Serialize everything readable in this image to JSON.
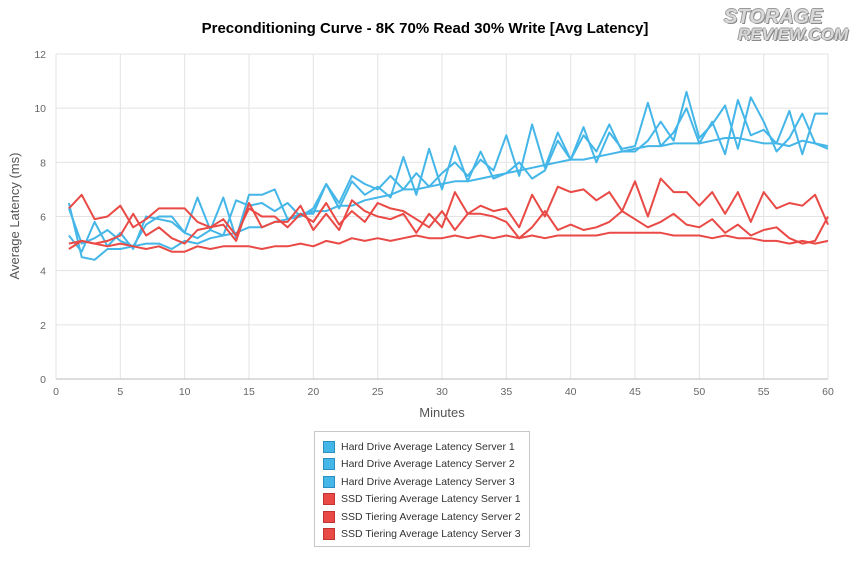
{
  "logo": {
    "line1": "STORAGE",
    "line2": "REVIEW.COM"
  },
  "chart_data": {
    "type": "line",
    "title": "Preconditioning Curve - 8K 70% Read 30% Write [Avg Latency]",
    "xlabel": "Minutes",
    "ylabel": "Average Latency (ms)",
    "xlim": [
      0,
      60
    ],
    "ylim": [
      0,
      12
    ],
    "xticks": [
      0,
      5,
      10,
      15,
      20,
      25,
      30,
      35,
      40,
      45,
      50,
      55,
      60
    ],
    "yticks": [
      0,
      2,
      4,
      6,
      8,
      10,
      12
    ],
    "grid": true,
    "legend_position": "bottom",
    "x": [
      1,
      2,
      3,
      4,
      5,
      6,
      7,
      8,
      9,
      10,
      11,
      12,
      13,
      14,
      15,
      16,
      17,
      18,
      19,
      20,
      21,
      22,
      23,
      24,
      25,
      26,
      27,
      28,
      29,
      30,
      31,
      32,
      33,
      34,
      35,
      36,
      37,
      38,
      39,
      40,
      41,
      42,
      43,
      44,
      45,
      46,
      47,
      48,
      49,
      50,
      51,
      52,
      53,
      54,
      55,
      56,
      57,
      58,
      59,
      60
    ],
    "series": [
      {
        "name": "Hard Drive Average Latency Server 1",
        "color": "#45b6e8",
        "values": [
          6.5,
          4.5,
          4.4,
          4.8,
          4.8,
          4.9,
          5.0,
          5.0,
          4.8,
          5.1,
          5.0,
          5.2,
          5.3,
          5.4,
          5.6,
          5.6,
          5.8,
          5.9,
          6.0,
          6.2,
          6.2,
          6.4,
          6.4,
          6.6,
          6.7,
          6.8,
          7.0,
          7.0,
          7.1,
          7.2,
          7.3,
          7.3,
          7.4,
          7.5,
          7.6,
          7.7,
          7.8,
          7.9,
          8.0,
          8.1,
          8.1,
          8.2,
          8.3,
          8.4,
          8.5,
          8.6,
          8.6,
          8.7,
          8.7,
          8.7,
          8.8,
          8.9,
          8.9,
          8.8,
          8.7,
          8.7,
          8.6,
          8.8,
          8.7,
          8.6
        ]
      },
      {
        "name": "Hard Drive Average Latency Server 2",
        "color": "#45b6e8",
        "values": [
          5.3,
          4.7,
          5.8,
          4.9,
          5.4,
          4.8,
          6.0,
          5.9,
          5.8,
          5.4,
          5.2,
          5.5,
          5.3,
          6.6,
          6.4,
          6.5,
          6.2,
          6.5,
          6.0,
          6.3,
          7.2,
          6.3,
          7.3,
          6.8,
          7.1,
          6.7,
          8.2,
          6.8,
          8.5,
          7.0,
          8.6,
          7.3,
          8.4,
          7.4,
          7.6,
          8.0,
          7.4,
          7.7,
          8.8,
          8.1,
          9.3,
          8.0,
          9.1,
          8.5,
          8.6,
          10.2,
          8.6,
          9.1,
          10.0,
          8.7,
          9.5,
          8.3,
          10.3,
          9.0,
          9.2,
          8.7,
          9.9,
          8.3,
          9.8,
          9.8
        ]
      },
      {
        "name": "Hard Drive Average Latency Server 3",
        "color": "#45b6e8",
        "values": [
          6.3,
          5.0,
          5.2,
          5.5,
          5.1,
          4.9,
          5.7,
          6.0,
          6.0,
          5.4,
          6.7,
          5.5,
          6.7,
          5.2,
          6.8,
          6.8,
          7.0,
          5.9,
          6.1,
          6.1,
          7.2,
          6.5,
          7.5,
          7.2,
          7.0,
          7.5,
          7.0,
          7.6,
          7.1,
          7.6,
          8.0,
          7.5,
          8.1,
          7.7,
          9.0,
          7.5,
          9.4,
          7.8,
          9.1,
          8.1,
          9.0,
          8.4,
          9.4,
          8.4,
          8.4,
          8.8,
          9.5,
          8.8,
          10.6,
          8.9,
          9.4,
          10.1,
          8.5,
          10.4,
          9.5,
          8.4,
          8.9,
          9.8,
          8.7,
          8.5
        ]
      },
      {
        "name": "SSD Tiering Average Latency Server 1",
        "color": "#e94a45",
        "values": [
          4.8,
          5.1,
          5.0,
          4.9,
          5.0,
          4.9,
          4.8,
          4.9,
          4.7,
          4.7,
          4.9,
          4.8,
          4.9,
          4.9,
          4.9,
          4.8,
          4.9,
          4.9,
          5.0,
          4.9,
          5.1,
          5.0,
          5.2,
          5.1,
          5.2,
          5.1,
          5.2,
          5.3,
          5.2,
          5.2,
          5.3,
          5.2,
          5.3,
          5.2,
          5.3,
          5.2,
          5.3,
          5.2,
          5.3,
          5.3,
          5.3,
          5.3,
          5.4,
          5.4,
          5.4,
          5.4,
          5.4,
          5.3,
          5.3,
          5.3,
          5.2,
          5.3,
          5.2,
          5.2,
          5.1,
          5.1,
          5.0,
          5.1,
          5.0,
          5.1
        ]
      },
      {
        "name": "SSD Tiering Average Latency Server 2",
        "color": "#e94a45",
        "values": [
          6.3,
          6.8,
          5.9,
          6.0,
          6.4,
          5.6,
          5.9,
          6.3,
          6.3,
          6.3,
          5.8,
          5.6,
          5.7,
          5.1,
          6.5,
          5.6,
          5.8,
          5.8,
          6.4,
          5.5,
          6.1,
          5.5,
          6.6,
          6.2,
          6.0,
          5.9,
          6.1,
          5.4,
          6.1,
          5.6,
          6.9,
          6.1,
          6.4,
          6.2,
          6.3,
          5.6,
          6.8,
          6.0,
          7.1,
          6.9,
          7.0,
          6.6,
          6.9,
          6.2,
          7.3,
          6.0,
          7.4,
          6.9,
          6.9,
          6.4,
          6.9,
          6.1,
          6.9,
          5.8,
          6.9,
          6.3,
          6.5,
          6.4,
          6.8,
          5.7
        ]
      },
      {
        "name": "SSD Tiering Average Latency Server 3",
        "color": "#e94a45",
        "values": [
          5.0,
          5.1,
          5.0,
          5.1,
          5.3,
          6.1,
          5.3,
          5.6,
          5.2,
          5.0,
          5.5,
          5.6,
          5.9,
          5.3,
          6.3,
          6.0,
          6.0,
          5.6,
          6.1,
          5.8,
          6.5,
          5.7,
          6.2,
          5.8,
          6.5,
          6.3,
          6.2,
          5.9,
          5.6,
          6.2,
          5.5,
          6.1,
          6.1,
          6.0,
          5.8,
          5.2,
          5.6,
          6.2,
          5.5,
          5.7,
          5.5,
          5.6,
          5.8,
          6.2,
          5.9,
          5.6,
          5.8,
          6.1,
          5.7,
          5.6,
          5.9,
          5.4,
          5.7,
          5.3,
          5.5,
          5.6,
          5.2,
          5.0,
          5.1,
          6.0
        ]
      }
    ]
  }
}
